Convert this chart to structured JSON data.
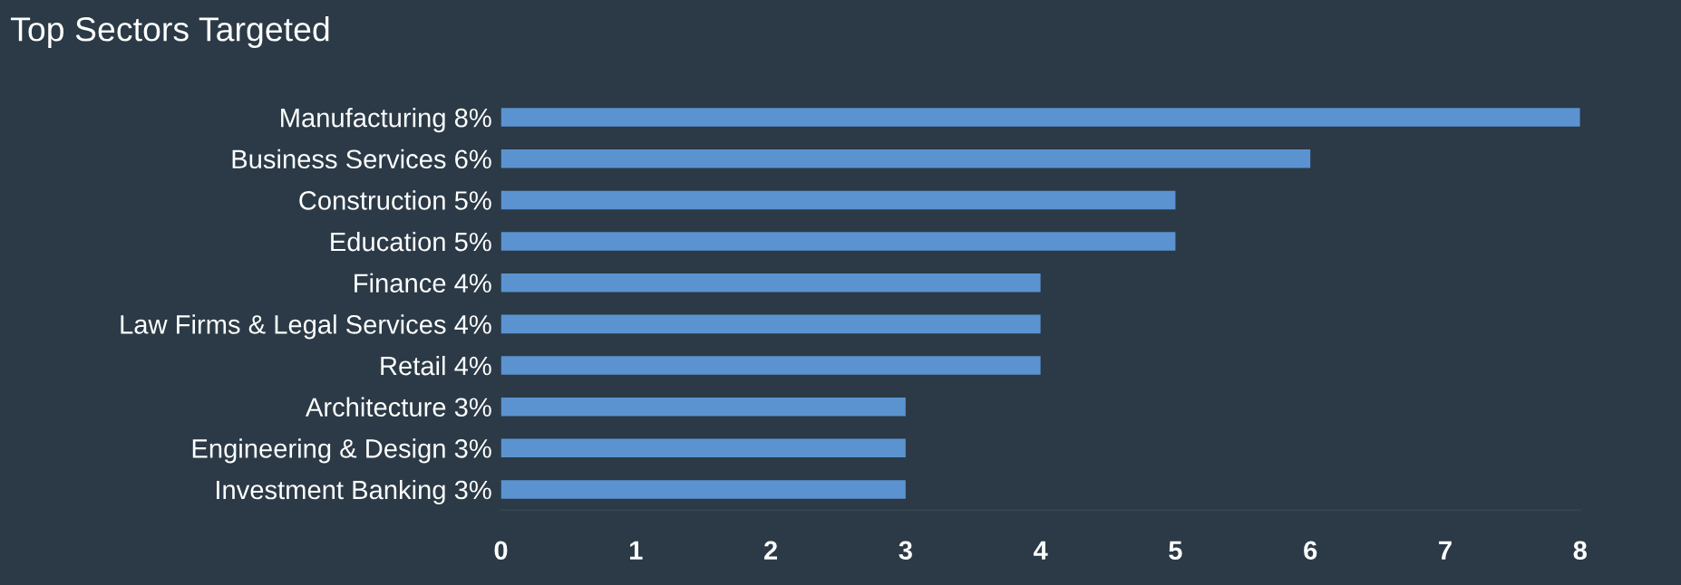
{
  "chart_data": {
    "type": "bar",
    "orientation": "horizontal",
    "title": "Top Sectors Targeted",
    "categories": [
      "Manufacturing 8%",
      "Business Services 6%",
      "Construction 5%",
      "Education 5%",
      "Finance 4%",
      "Law Firms & Legal Services 4%",
      "Retail 4%",
      "Architecture 3%",
      "Engineering & Design 3%",
      "Investment Banking 3%"
    ],
    "values": [
      8,
      6,
      5,
      5,
      4,
      4,
      4,
      3,
      3,
      3
    ],
    "color": "#5b93d1",
    "xlim": [
      0,
      8
    ],
    "xticks": [
      0,
      1,
      2,
      3,
      4,
      5,
      6,
      7,
      8
    ],
    "grid": false,
    "legend": false
  }
}
